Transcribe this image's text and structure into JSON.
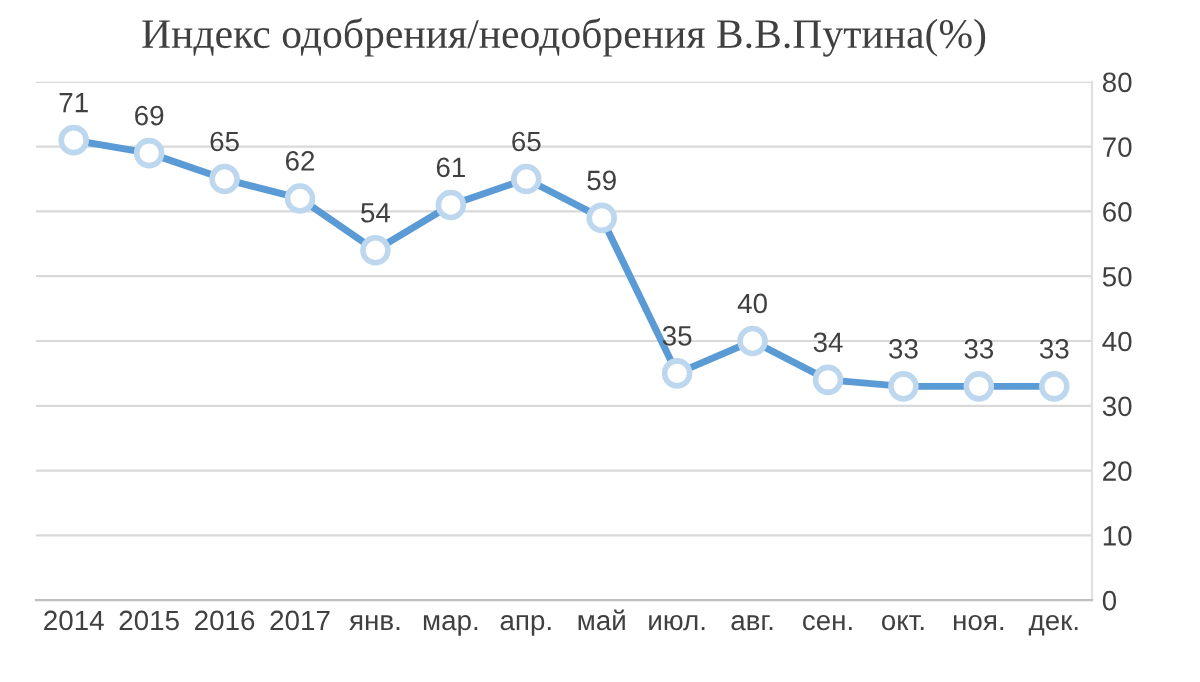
{
  "chart_data": {
    "type": "line",
    "title": "Индекс одобрения/неодобрения В.В.Путина(%)",
    "categories": [
      "2014",
      "2015",
      "2016",
      "2017",
      "янв.",
      "мар.",
      "апр.",
      "май",
      "июл.",
      "авг.",
      "сен.",
      "окт.",
      "ноя.",
      "дек."
    ],
    "values": [
      71,
      69,
      65,
      62,
      54,
      61,
      65,
      59,
      35,
      40,
      34,
      33,
      33,
      33
    ],
    "color": "#5b9bd5",
    "marker": "circle",
    "line_style": "solid",
    "ylim": [
      0,
      80
    ],
    "yticks": [
      0,
      10,
      20,
      30,
      40,
      50,
      60,
      70,
      80
    ],
    "grid": "y",
    "data_labels": true
  }
}
